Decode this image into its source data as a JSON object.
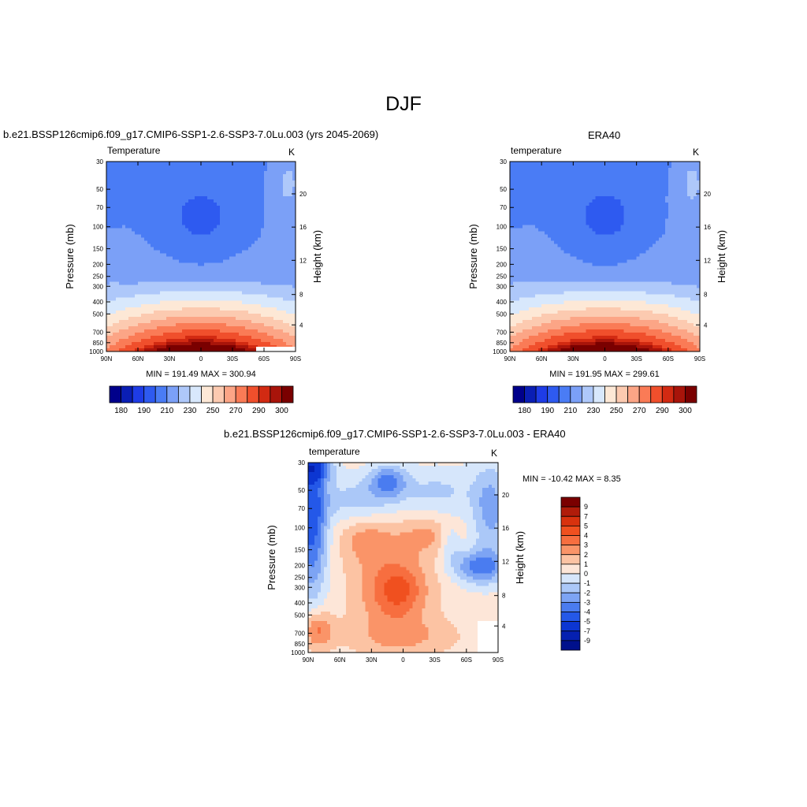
{
  "page_title": "DJF",
  "chart_data": [
    {
      "id": "model",
      "type": "contour",
      "title": "b.e21.BSSP126cmip6.f09_g17.CMIP6-SSP1-2.6-SSP3-7.0Lu.003 (yrs 2045-2069)",
      "left_label": "Temperature",
      "units": "K",
      "ylabel": "Pressure (mb)",
      "y2label": "Height (km)",
      "x_ticks": [
        "90N",
        "60N",
        "30N",
        "0",
        "30S",
        "60S",
        "90S"
      ],
      "y_ticks": [
        "30",
        "50",
        "70",
        "100",
        "150",
        "200",
        "250",
        "300",
        "400",
        "500",
        "700",
        "850",
        "1000"
      ],
      "y2_ticks": [
        "20",
        "16",
        "12",
        "8",
        "4"
      ],
      "stats": "MIN = 191.49  MAX = 300.94",
      "colorbar_labels": [
        "180",
        "190",
        "210",
        "230",
        "250",
        "270",
        "290",
        "300"
      ]
    },
    {
      "id": "obs",
      "type": "contour",
      "title": "ERA40",
      "left_label": "temperature",
      "units": "K",
      "ylabel": "Pressure (mb)",
      "y2label": "Height (km)",
      "x_ticks": [
        "90N",
        "60N",
        "30N",
        "0",
        "30S",
        "60S",
        "90S"
      ],
      "y_ticks": [
        "30",
        "50",
        "70",
        "100",
        "150",
        "200",
        "250",
        "300",
        "400",
        "500",
        "700",
        "850",
        "1000"
      ],
      "y2_ticks": [
        "20",
        "16",
        "12",
        "8",
        "4"
      ],
      "stats": "MIN = 191.95  MAX = 299.61",
      "colorbar_labels": [
        "180",
        "190",
        "210",
        "230",
        "250",
        "270",
        "290",
        "300"
      ]
    },
    {
      "id": "diff",
      "type": "contour",
      "title": "b.e21.BSSP126cmip6.f09_g17.CMIP6-SSP1-2.6-SSP3-7.0Lu.003 - ERA40",
      "left_label": "temperature",
      "units": "K",
      "ylabel": "Pressure (mb)",
      "y2label": "Height (km)",
      "x_ticks": [
        "90N",
        "60N",
        "30N",
        "0",
        "30S",
        "60S",
        "90S"
      ],
      "y_ticks": [
        "30",
        "50",
        "70",
        "100",
        "150",
        "200",
        "250",
        "300",
        "400",
        "500",
        "700",
        "850",
        "1000"
      ],
      "y2_ticks": [
        "20",
        "16",
        "12",
        "8",
        "4"
      ],
      "stats": "MIN = -10.42  MAX =   8.35",
      "colorbar_labels": [
        "9",
        "7",
        "5",
        "4",
        "3",
        "2",
        "1",
        "0",
        "-1",
        "-2",
        "-3",
        "-4",
        "-5",
        "-7",
        "-9"
      ]
    }
  ],
  "colors": {
    "abs_scale": [
      "#00008b",
      "#0a1eb4",
      "#1e3ce6",
      "#2e5af0",
      "#4a7cf5",
      "#7ba0f7",
      "#aec8fa",
      "#d8e8fc",
      "#fde8d6",
      "#fccab0",
      "#fca586",
      "#fa7b56",
      "#f04f2c",
      "#d22a12",
      "#a8140a",
      "#7a0000"
    ],
    "diff_scale": [
      "#7a0000",
      "#b01c0a",
      "#d8320e",
      "#f0501f",
      "#f76e3f",
      "#fa9468",
      "#fcc3a3",
      "#fde6d8",
      "#d6e6fb",
      "#abc8f8",
      "#7da4f4",
      "#4a7cf0",
      "#2458e8",
      "#0c36d2",
      "#0520b0",
      "#00108c"
    ]
  }
}
